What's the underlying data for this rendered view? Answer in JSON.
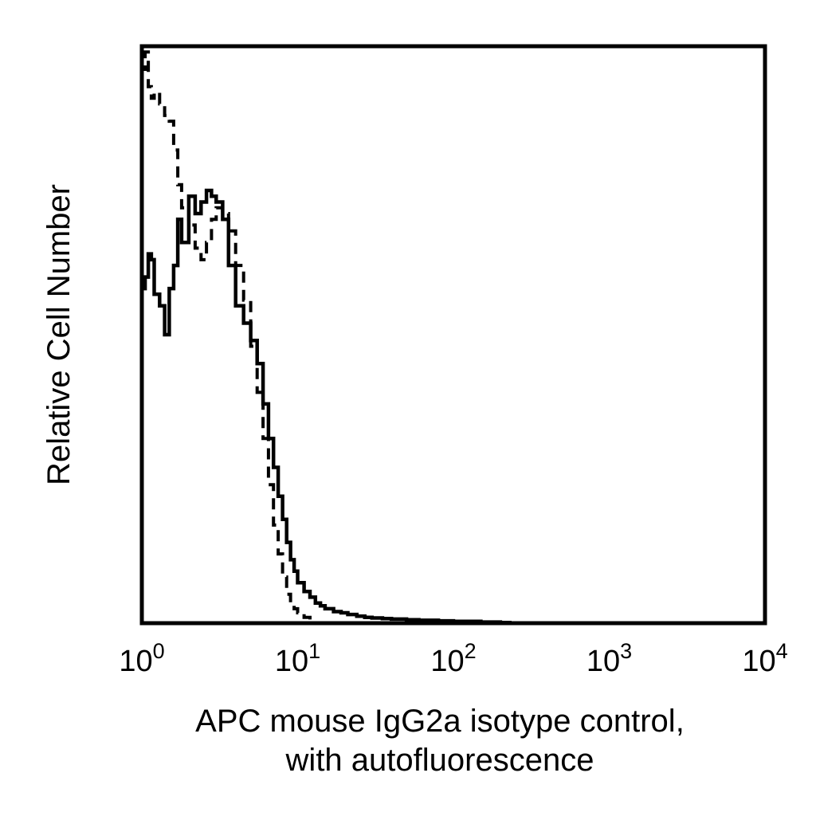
{
  "chart_data": {
    "type": "line",
    "title": "",
    "xlabel_lines": [
      "APC mouse IgG2a isotype control,",
      "with autofluorescence"
    ],
    "ylabel": "Relative Cell Number",
    "x_scale": "log",
    "xlim": [
      1,
      10000
    ],
    "ylim": [
      0,
      100
    ],
    "y_ticks_shown": false,
    "grid": false,
    "legend": "none",
    "x_ticks": [
      {
        "base": "10",
        "exp": "0",
        "value": 1
      },
      {
        "base": "10",
        "exp": "1",
        "value": 10
      },
      {
        "base": "10",
        "exp": "2",
        "value": 100
      },
      {
        "base": "10",
        "exp": "3",
        "value": 1000
      },
      {
        "base": "10",
        "exp": "4",
        "value": 10000
      }
    ],
    "series": [
      {
        "style": "solid",
        "x": [
          1.0,
          1.05,
          1.1,
          1.15,
          1.2,
          1.3,
          1.4,
          1.5,
          1.6,
          1.7,
          1.8,
          2.0,
          2.2,
          2.4,
          2.6,
          2.8,
          3.0,
          3.3,
          3.6,
          4.0,
          4.5,
          5.0,
          5.5,
          6.0,
          6.5,
          7.0,
          7.5,
          8.0,
          8.5,
          9.0,
          9.5,
          10,
          11,
          12,
          13,
          14,
          15,
          17,
          19,
          21,
          24,
          27,
          30,
          35,
          40,
          50,
          60,
          70,
          80,
          100,
          120,
          150,
          180,
          200,
          230
        ],
        "y": [
          58,
          60,
          64,
          63,
          57,
          55,
          50,
          58,
          62,
          70,
          66,
          74,
          71,
          73,
          75,
          74,
          73,
          70,
          62,
          55,
          52,
          49,
          45,
          38,
          32,
          27,
          22,
          18,
          14,
          11,
          9,
          7,
          5.5,
          4.5,
          3.5,
          3,
          2.5,
          2,
          1.8,
          1.5,
          1.2,
          1,
          0.9,
          0.8,
          0.7,
          0.6,
          0.5,
          0.5,
          0.4,
          0.3,
          0.3,
          0.2,
          0.2,
          0.1,
          0
        ]
      },
      {
        "style": "dashed",
        "x": [
          1.0,
          1.05,
          1.1,
          1.15,
          1.2,
          1.3,
          1.4,
          1.5,
          1.6,
          1.7,
          1.8,
          2.0,
          2.2,
          2.4,
          2.6,
          2.8,
          3.0,
          3.3,
          3.6,
          4.0,
          4.5,
          5.0,
          5.5,
          6.0,
          6.5,
          7.0,
          7.5,
          8.0,
          8.5,
          9.0,
          9.5,
          10,
          11,
          12,
          13
        ],
        "y": [
          96,
          99,
          93,
          91,
          92,
          90,
          88,
          87,
          82,
          76,
          72,
          69,
          65,
          63,
          66,
          70,
          72,
          71,
          68,
          62,
          56,
          48,
          40,
          32,
          24,
          17,
          12,
          8,
          5,
          3.5,
          2.5,
          1.8,
          1,
          0.5,
          0
        ]
      }
    ]
  }
}
